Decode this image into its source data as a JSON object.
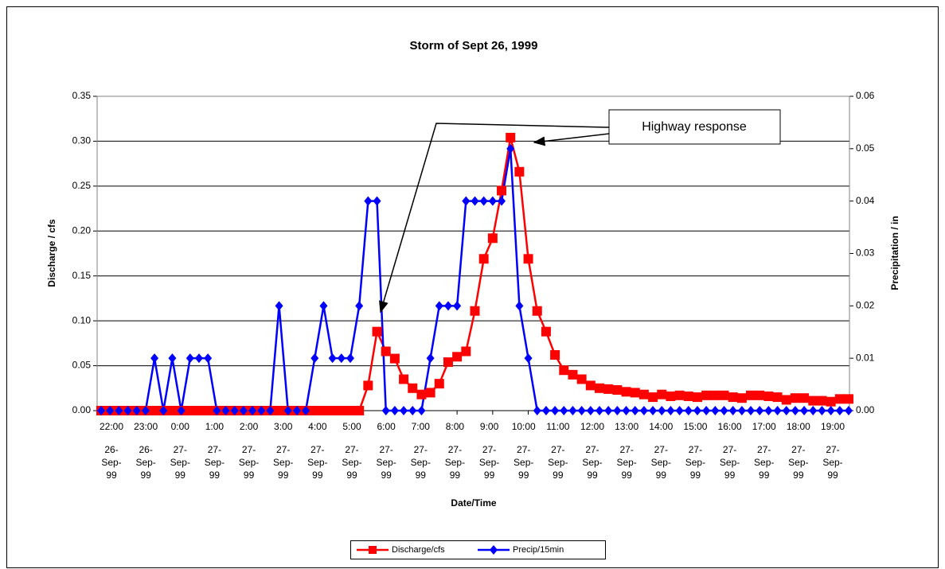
{
  "chart_data": {
    "type": "line",
    "title": "Storm of Sept 26, 1999",
    "x_label": "Date/Time",
    "y_label": "Discharge / cfs",
    "y2_label": "Precipitation / in",
    "annotation": "Highway response",
    "categories": [
      "22:00",
      null,
      null,
      null,
      "23:00",
      null,
      null,
      null,
      "0:00",
      null,
      null,
      null,
      "1:00",
      null,
      null,
      null,
      "2:00",
      null,
      null,
      null,
      "3:00",
      null,
      null,
      null,
      "4:00",
      null,
      null,
      null,
      "5:00",
      null,
      null,
      null,
      "6:00",
      null,
      null,
      null,
      "7:00",
      null,
      null,
      null,
      "8:00",
      null,
      null,
      null,
      "9:00",
      null,
      null,
      null,
      "10:00",
      null,
      null,
      null,
      "11:00",
      null,
      null,
      null,
      "12:00",
      null,
      null,
      null,
      "13:00",
      null,
      null,
      null,
      "14:00",
      null,
      null,
      null,
      "15:00",
      null,
      null,
      null,
      "16:00",
      null,
      null,
      null,
      "17:00",
      null,
      null,
      null,
      "18:00",
      null,
      null,
      null,
      "19:00"
    ],
    "category_dates": [
      "26-Sep-99",
      null,
      null,
      null,
      "26-Sep-99",
      null,
      null,
      null,
      "27-Sep-99",
      null,
      null,
      null,
      "27-Sep-99",
      null,
      null,
      null,
      "27-Sep-99",
      null,
      null,
      null,
      "27-Sep-99",
      null,
      null,
      null,
      "27-Sep-99",
      null,
      null,
      null,
      "27-Sep-99",
      null,
      null,
      null,
      "27-Sep-99",
      null,
      null,
      null,
      "27-Sep-99",
      null,
      null,
      null,
      "27-Sep-99",
      null,
      null,
      null,
      "27-Sep-99",
      null,
      null,
      null,
      "27-Sep-99",
      null,
      null,
      null,
      "27-Sep-99",
      null,
      null,
      null,
      "27-Sep-99",
      null,
      null,
      null,
      "27-Sep-99",
      null,
      null,
      null,
      "27-Sep-99",
      null,
      null,
      null,
      "27-Sep-99",
      null,
      null,
      null,
      "27-Sep-99",
      null,
      null,
      null,
      "27-Sep-99",
      null,
      null,
      null,
      "27-Sep-99",
      null,
      null,
      null,
      "27-Sep-99"
    ],
    "series": [
      {
        "name": "Discharge/cfs",
        "color": "#ff0000",
        "marker": "square",
        "values": [
          0,
          0,
          0,
          0,
          0,
          0,
          0,
          0,
          0,
          0,
          0,
          0,
          0,
          0,
          0,
          0,
          0,
          0,
          0,
          0,
          0,
          0,
          0,
          0,
          0,
          0,
          0,
          0,
          0,
          0,
          0.028,
          0.088,
          0.066,
          0.058,
          0.035,
          0.025,
          0.018,
          0.02,
          0.03,
          0.054,
          0.06,
          0.066,
          0.111,
          0.169,
          0.192,
          0.245,
          0.304,
          0.266,
          0.169,
          0.111,
          0.088,
          0.062,
          0.045,
          0.04,
          0.035,
          0.028,
          0.025,
          0.024,
          0.023,
          0.021,
          0.02,
          0.018,
          0.015,
          0.018,
          0.016,
          0.017,
          0.016,
          0.015,
          0.017,
          0.017,
          0.017,
          0.015,
          0.014,
          0.017,
          0.017,
          0.016,
          0.015,
          0.012,
          0.014,
          0.014,
          0.011,
          0.011,
          0.01,
          0.013,
          0.013
        ]
      },
      {
        "name": "Precip/15min",
        "color": "#0000ff",
        "marker": "diamond",
        "axis": "y2",
        "values": [
          0,
          0,
          0,
          0,
          0,
          0,
          0.01,
          0,
          0.01,
          0,
          0.01,
          0.01,
          0.01,
          0,
          0,
          0,
          0,
          0,
          0,
          0,
          0.02,
          0,
          0,
          0,
          0.01,
          0.02,
          0.01,
          0.01,
          0.01,
          0.02,
          0.04,
          0.04,
          0,
          0,
          0,
          0,
          0,
          0.01,
          0.02,
          0.02,
          0.02,
          0.04,
          0.04,
          0.04,
          0.04,
          0.04,
          0.05,
          0.02,
          0.01,
          0,
          0,
          0,
          0,
          0,
          0,
          0,
          0,
          0,
          0,
          0,
          0,
          0,
          0,
          0,
          0,
          0,
          0,
          0,
          0,
          0,
          0,
          0,
          0,
          0,
          0,
          0,
          0,
          0,
          0,
          0,
          0,
          0,
          0,
          0,
          0
        ]
      }
    ],
    "ylim": [
      0,
      0.35
    ],
    "yticks": [
      {
        "value": 0,
        "label": "0.00"
      },
      {
        "value": 0.05,
        "label": "0.05"
      },
      {
        "value": 0.1,
        "label": "0.10"
      },
      {
        "value": 0.15,
        "label": "0.15"
      },
      {
        "value": 0.2,
        "label": "0.20"
      },
      {
        "value": 0.25,
        "label": "0.25"
      },
      {
        "value": 0.3,
        "label": "0.30"
      },
      {
        "value": 0.35,
        "label": "0.35"
      }
    ],
    "y2lim": [
      0,
      0.06
    ],
    "y2ticks": [
      {
        "value": 0,
        "label": "0.00"
      },
      {
        "value": 0.01,
        "label": "0.01"
      },
      {
        "value": 0.02,
        "label": "0.02"
      },
      {
        "value": 0.03,
        "label": "0.03"
      },
      {
        "value": 0.04,
        "label": "0.04"
      },
      {
        "value": 0.05,
        "label": "0.05"
      },
      {
        "value": 0.06,
        "label": "0.06"
      }
    ],
    "grid": true,
    "legend": "bottom"
  }
}
